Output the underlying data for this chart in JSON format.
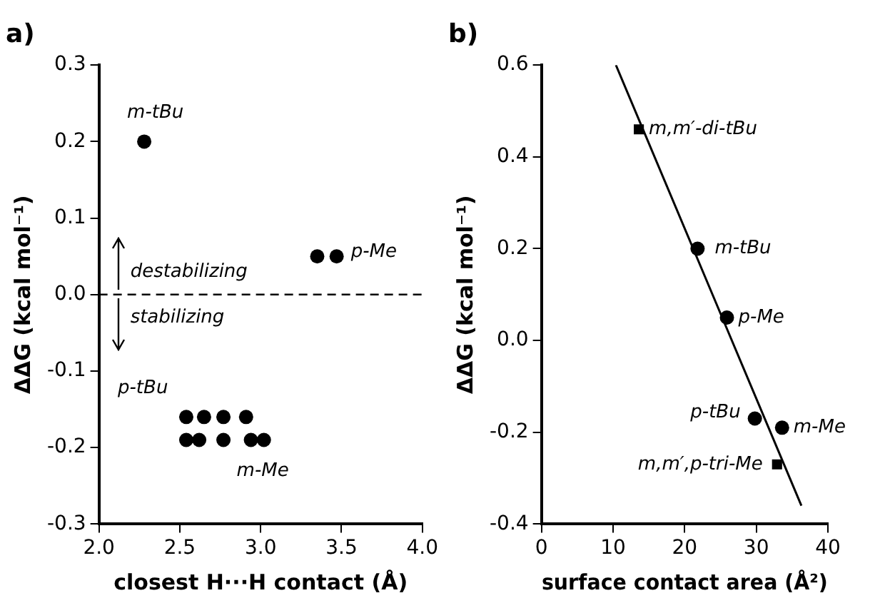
{
  "chart_data": [
    {
      "type": "scatter",
      "title": "a)",
      "xlabel": "closest H···H contact (Å)",
      "ylabel": "ΔΔG (kcal mol⁻¹)",
      "series": [
        {
          "color": "#000000",
          "marker": "circle",
          "x": [
            2.28,
            3.35,
            3.47,
            2.54,
            2.65,
            2.77,
            2.91,
            2.54,
            2.62,
            2.77,
            2.94,
            3.02
          ],
          "values": [
            0.2,
            0.05,
            0.05,
            -0.16,
            -0.16,
            -0.16,
            -0.16,
            -0.19,
            -0.19,
            -0.19,
            -0.19,
            -0.19
          ]
        }
      ],
      "xlim": [
        2.0,
        4.0
      ],
      "xticks": [
        {
          "value": 2.0,
          "label": "2.0"
        },
        {
          "value": 2.5,
          "label": "2.5"
        },
        {
          "value": 3.0,
          "label": "3.0"
        },
        {
          "value": 3.5,
          "label": "3.5"
        },
        {
          "value": 4.0,
          "label": "4.0"
        }
      ],
      "ylim": [
        -0.3,
        0.3
      ],
      "yticks": [
        {
          "value": -0.3,
          "label": "-0.3"
        },
        {
          "value": -0.2,
          "label": "-0.2"
        },
        {
          "value": -0.1,
          "label": "-0.1"
        },
        {
          "value": 0,
          "label": "0.0"
        },
        {
          "value": 0.1,
          "label": "0.1"
        },
        {
          "value": 0.2,
          "label": "0.2"
        },
        {
          "value": 0.3,
          "label": "0.3"
        }
      ],
      "ref_lines": [
        {
          "axis": "y",
          "value": 0,
          "line_style": "dashed",
          "color": "#000000"
        }
      ],
      "annotations": [
        {
          "text": "m-tBu",
          "x": 2.28,
          "y": 0.2
        },
        {
          "text": "p-Me",
          "x": 3.47,
          "y": 0.05
        },
        {
          "text": "p-tBu",
          "x": 2.54,
          "y": -0.16
        },
        {
          "text": "m-Me",
          "x": 2.94,
          "y": -0.19
        },
        {
          "text": "destabilizing",
          "y": 0
        },
        {
          "text": "stabilizing",
          "y": 0
        }
      ],
      "grid": false,
      "legend": false
    },
    {
      "type": "scatter",
      "title": "b)",
      "xlabel": "surface contact area (Å²)",
      "ylabel": "ΔΔG (kcal mol⁻¹)",
      "series": [
        {
          "color": "#000000",
          "marker": "square",
          "x": [
            13.6,
            32.9
          ],
          "values": [
            0.46,
            -0.27
          ]
        },
        {
          "color": "#000000",
          "marker": "circle",
          "x": [
            21.8,
            25.9,
            29.8,
            33.6
          ],
          "values": [
            0.2,
            0.05,
            -0.17,
            -0.19
          ]
        },
        {
          "type": "line",
          "color": "#000000",
          "marker": "none",
          "x": [
            10.4,
            36.3
          ],
          "values": [
            0.6,
            -0.36
          ]
        }
      ],
      "xlim": [
        0,
        40
      ],
      "xticks": [
        0,
        10,
        20,
        30,
        40
      ],
      "ylim": [
        -0.4,
        0.6
      ],
      "yticks": [
        {
          "value": -0.4,
          "label": "-0.4"
        },
        {
          "value": -0.2,
          "label": "-0.2"
        },
        {
          "value": 0,
          "label": "0.0"
        },
        {
          "value": 0.2,
          "label": "0.2"
        },
        {
          "value": 0.4,
          "label": "0.4"
        },
        {
          "value": 0.6,
          "label": "0.6"
        }
      ],
      "annotations": [
        {
          "text": "m,m′-di-tBu",
          "x": 13.6,
          "y": 0.46
        },
        {
          "text": "m-tBu",
          "x": 21.8,
          "y": 0.2
        },
        {
          "text": "p-Me",
          "x": 25.9,
          "y": 0.05
        },
        {
          "text": "p-tBu",
          "x": 29.8,
          "y": -0.17
        },
        {
          "text": "m-Me",
          "x": 33.6,
          "y": -0.19
        },
        {
          "text": "m,m′,p-tri-Me",
          "x": 32.9,
          "y": -0.27
        }
      ],
      "grid": false,
      "legend": false
    }
  ]
}
